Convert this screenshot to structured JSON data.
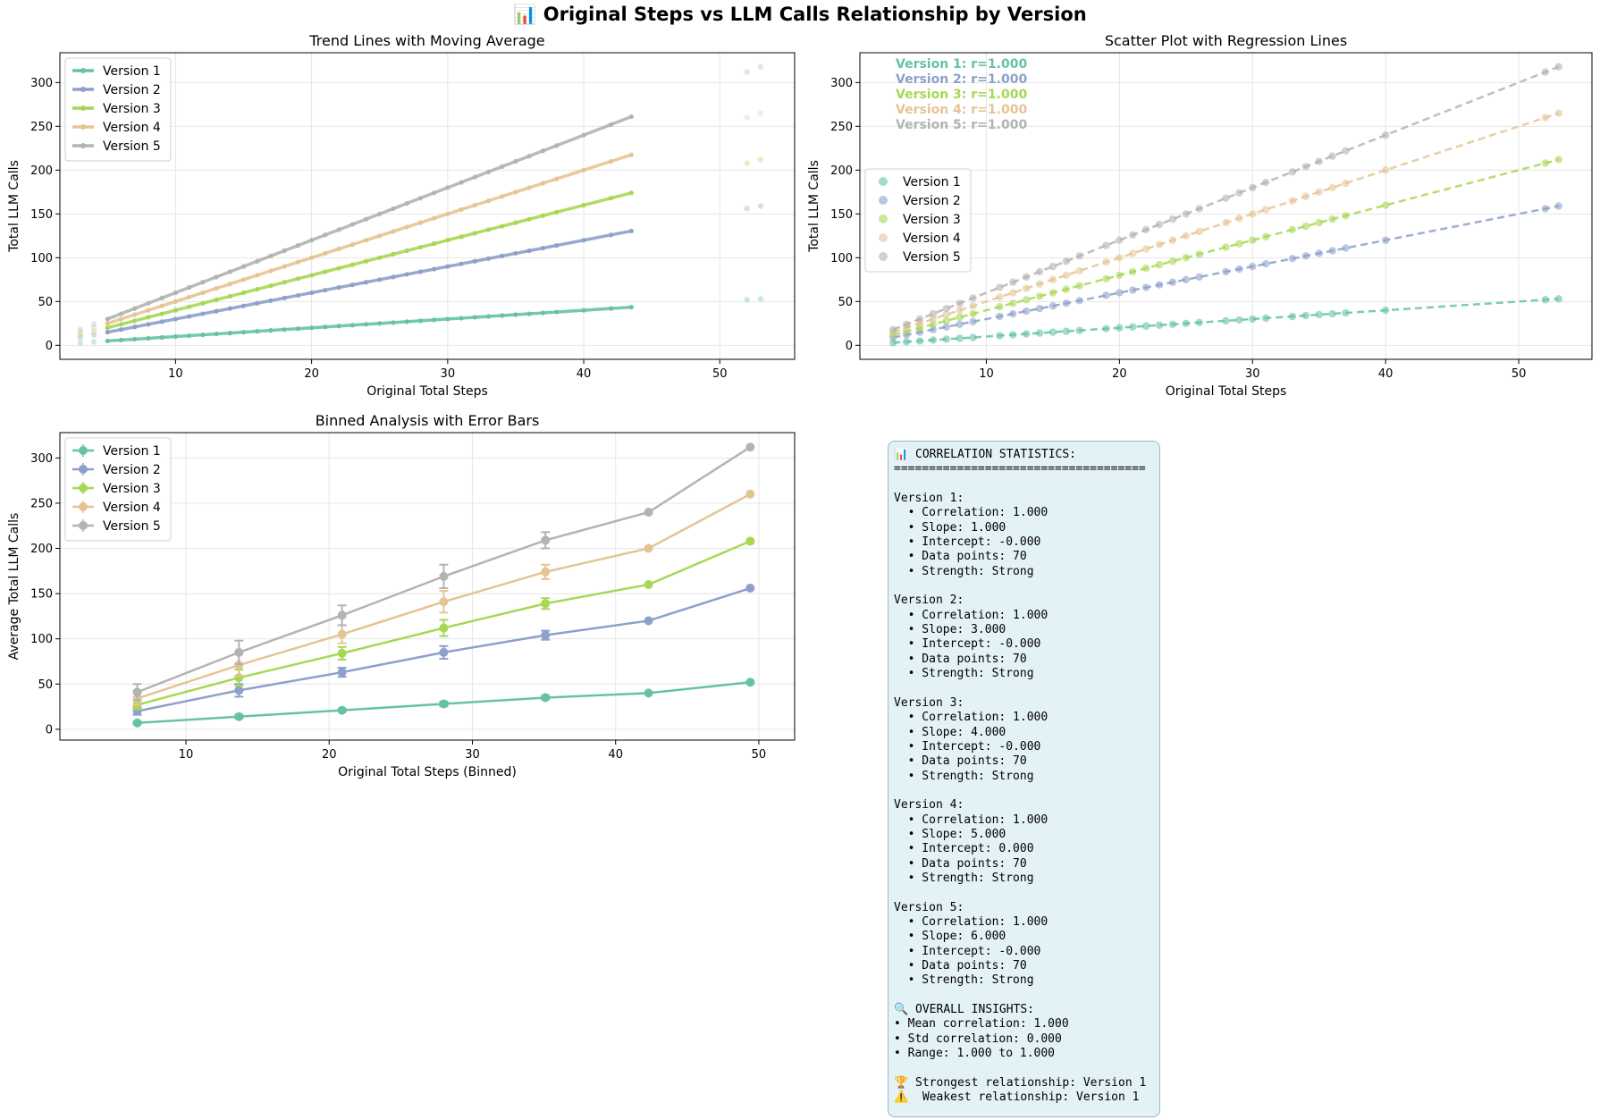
{
  "title": "📊 Original Steps vs LLM Calls Relationship by Version",
  "colors": {
    "Version 1": "#66c2a5",
    "Version 2": "#8da0cb",
    "Version 3": "#a6d854",
    "Version 4": "#e5c494",
    "Version 5": "#b3b3b3"
  },
  "chart_data": [
    {
      "type": "line",
      "title": "Trend Lines with Moving Average",
      "xlabel": "Original Total Steps",
      "ylabel": "Total LLM Calls",
      "xlim": [
        1.5,
        55.5
      ],
      "ylim": [
        -16,
        334
      ],
      "xticks": [
        10,
        20,
        30,
        40,
        50
      ],
      "yticks": [
        0,
        50,
        100,
        150,
        200,
        250,
        300
      ],
      "grid": true,
      "legend": "top-left",
      "x": [
        5,
        6,
        7,
        8,
        9,
        10,
        11,
        12,
        13,
        14,
        15,
        16,
        17,
        18,
        19,
        20,
        21,
        22,
        23,
        24,
        25,
        26,
        27,
        28,
        29,
        30,
        31,
        32,
        33,
        34,
        35,
        36,
        37,
        38,
        40,
        42,
        43.5
      ],
      "series": [
        {
          "name": "Version 1",
          "slope": 1
        },
        {
          "name": "Version 2",
          "slope": 3
        },
        {
          "name": "Version 3",
          "slope": 4
        },
        {
          "name": "Version 4",
          "slope": 5
        },
        {
          "name": "Version 5",
          "slope": 6
        }
      ],
      "raw_points": {
        "x": [
          3,
          4,
          52,
          53
        ]
      }
    },
    {
      "type": "scatter",
      "title": "Scatter Plot with Regression Lines",
      "xlabel": "Original Total Steps",
      "ylabel": "Total LLM Calls",
      "xlim": [
        0.5,
        55.5
      ],
      "ylim": [
        -16,
        334
      ],
      "xticks": [
        10,
        20,
        30,
        40,
        50
      ],
      "yticks": [
        0,
        50,
        100,
        150,
        200,
        250,
        300
      ],
      "grid": true,
      "legend": "center-left",
      "x": [
        3,
        4,
        5,
        6,
        7,
        8,
        9,
        11,
        12,
        13,
        14,
        15,
        16,
        17,
        19,
        20,
        21,
        22,
        23,
        24,
        25,
        26,
        28,
        29,
        30,
        31,
        33,
        34,
        35,
        36,
        37,
        40,
        52,
        53
      ],
      "series": [
        {
          "name": "Version 1",
          "slope": 1,
          "label": "Version 1: r=1.000"
        },
        {
          "name": "Version 2",
          "slope": 3,
          "label": "Version 2: r=1.000"
        },
        {
          "name": "Version 3",
          "slope": 4,
          "label": "Version 3: r=1.000"
        },
        {
          "name": "Version 4",
          "slope": 5,
          "label": "Version 4: r=1.000"
        },
        {
          "name": "Version 5",
          "slope": 6,
          "label": "Version 5: r=1.000"
        }
      ]
    },
    {
      "type": "line",
      "title": "Binned Analysis with Error Bars",
      "xlabel": "Original Total Steps (Binned)",
      "ylabel": "Average Total LLM Calls",
      "xlim": [
        1.2,
        52.5
      ],
      "ylim": [
        -12,
        328
      ],
      "xticks": [
        10,
        20,
        30,
        40,
        50
      ],
      "yticks": [
        0,
        50,
        100,
        150,
        200,
        250,
        300
      ],
      "grid": true,
      "legend": "top-left",
      "x": [
        6.6,
        13.7,
        20.9,
        28.0,
        35.1,
        42.3,
        49.4
      ],
      "series": [
        {
          "name": "Version 1",
          "values": [
            7,
            14,
            21,
            28,
            35,
            40,
            52
          ],
          "errors": [
            1.2,
            2,
            1.5,
            2.5,
            2,
            0,
            0
          ]
        },
        {
          "name": "Version 2",
          "values": [
            20,
            43,
            63,
            85,
            104,
            120,
            156
          ],
          "errors": [
            4,
            7,
            5,
            7,
            5,
            0,
            0
          ]
        },
        {
          "name": "Version 3",
          "values": [
            27,
            57,
            84,
            112,
            139,
            160,
            208
          ],
          "errors": [
            5,
            9,
            7,
            9,
            6,
            0,
            0
          ]
        },
        {
          "name": "Version 4",
          "values": [
            34,
            71,
            105,
            141,
            174,
            200,
            260
          ],
          "errors": [
            7,
            12,
            10,
            12,
            8,
            0,
            0
          ]
        },
        {
          "name": "Version 5",
          "values": [
            41,
            85,
            126,
            169,
            209,
            240,
            312
          ],
          "errors": [
            9,
            13,
            11,
            13,
            9,
            0,
            0
          ]
        }
      ]
    }
  ],
  "stats_text": "📊 CORRELATION STATISTICS:\n====================================\n\nVersion 1:\n  • Correlation: 1.000\n  • Slope: 1.000\n  • Intercept: -0.000\n  • Data points: 70\n  • Strength: Strong\n\nVersion 2:\n  • Correlation: 1.000\n  • Slope: 3.000\n  • Intercept: -0.000\n  • Data points: 70\n  • Strength: Strong\n\nVersion 3:\n  • Correlation: 1.000\n  • Slope: 4.000\n  • Intercept: -0.000\n  • Data points: 70\n  • Strength: Strong\n\nVersion 4:\n  • Correlation: 1.000\n  • Slope: 5.000\n  • Intercept: 0.000\n  • Data points: 70\n  • Strength: Strong\n\nVersion 5:\n  • Correlation: 1.000\n  • Slope: 6.000\n  • Intercept: -0.000\n  • Data points: 70\n  • Strength: Strong\n\n🔍 OVERALL INSIGHTS:\n• Mean correlation: 1.000\n• Std correlation: 0.000\n• Range: 1.000 to 1.000\n\n🏆 Strongest relationship: Version 1\n⚠️  Weakest relationship: Version 1"
}
